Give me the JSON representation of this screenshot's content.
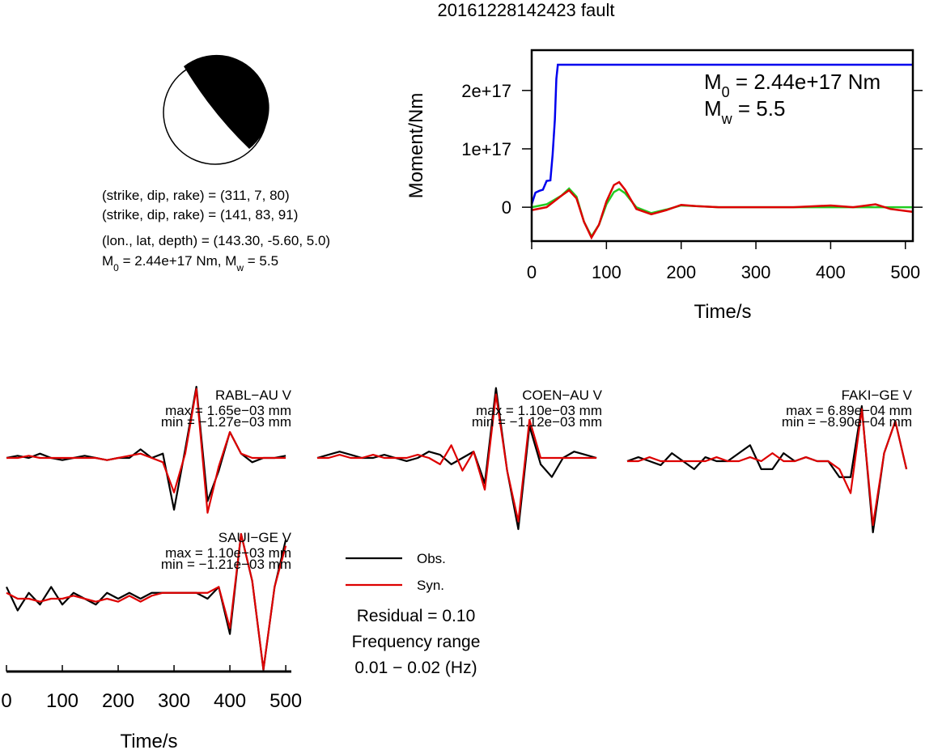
{
  "title": "20161228142423 fault",
  "focal_mechanism": {
    "lines": [
      "(strike, dip, rake) = (311, 7, 80)",
      "(strike, dip, rake) = (141, 83, 91)",
      "(lon., lat, depth) = (143.30, -5.60, 5.0)"
    ],
    "moment_line": [
      "M",
      "0",
      " = 2.44e+17 Nm, M",
      "w",
      " = 5.5"
    ]
  },
  "chart_data": [
    {
      "type": "line",
      "ylabel": "Moment/Nm",
      "xlabel": "Time/s",
      "annotations": [
        [
          "M",
          "0",
          " = 2.44e+17 Nm"
        ],
        [
          "M",
          "w",
          " = 5.5"
        ]
      ],
      "xlim": [
        0,
        510
      ],
      "xticks": [
        0,
        100,
        200,
        300,
        400,
        500
      ],
      "ylim": [
        -5.8e+16,
        2.69e+17
      ],
      "yticks": [
        0,
        {
          "value": 1e+17,
          "label": "1e+17"
        },
        {
          "value": 2e+17,
          "label": "2e+17"
        }
      ],
      "series": [
        {
          "color": "#0000ee",
          "x": [
            0,
            5,
            10,
            15,
            20,
            25,
            28,
            31,
            33,
            35,
            40,
            510
          ],
          "values": [
            5000000000000000.0,
            2.5e+16,
            2.8e+16,
            3e+16,
            4.5e+16,
            4.6e+16,
            9e+16,
            1.5e+17,
            2.2e+17,
            2.44e+17,
            2.44e+17,
            2.44e+17
          ]
        },
        {
          "color": "#22cc22",
          "x": [
            0,
            20,
            40,
            50,
            60,
            70,
            80,
            90,
            100,
            110,
            117,
            125,
            140,
            160,
            180,
            200,
            220,
            250,
            300,
            350,
            400,
            430,
            460,
            480,
            510
          ],
          "values": [
            0,
            5000000000000000.0,
            2e+16,
            3.2e+16,
            1.8e+16,
            -2.5e+16,
            -5e+16,
            -3e+16,
            5000000000000000.0,
            2.6e+16,
            3.1e+16,
            2.4e+16,
            0,
            -1e+16,
            -4000000000000000.0,
            3000000000000000.0,
            2000000000000000.0,
            0,
            0,
            0,
            0,
            0,
            0,
            0,
            0
          ]
        },
        {
          "color": "#dd0000",
          "x": [
            0,
            20,
            40,
            50,
            60,
            70,
            80,
            90,
            100,
            110,
            117,
            125,
            140,
            160,
            180,
            200,
            220,
            250,
            300,
            350,
            400,
            430,
            460,
            480,
            510
          ],
          "values": [
            -5000000000000000.0,
            0,
            2e+16,
            2.9e+16,
            1.5e+16,
            -2.5e+16,
            -5.2e+16,
            -3e+16,
            1e+16,
            3.8e+16,
            4.3e+16,
            3e+16,
            -3000000000000000.0,
            -1.2e+16,
            -5000000000000000.0,
            4000000000000000.0,
            2000000000000000.0,
            0,
            0,
            0,
            3000000000000000.0,
            0,
            5000000000000000.0,
            -3000000000000000.0,
            -8000000000000000.0
          ]
        }
      ]
    },
    {
      "type": "waveform",
      "xlabel": "Time/s",
      "xlim": [
        0,
        510
      ],
      "xticks": [
        0,
        100,
        200,
        300,
        400,
        500
      ],
      "x": [
        0,
        20,
        40,
        60,
        80,
        100,
        120,
        140,
        160,
        180,
        200,
        220,
        240,
        260,
        280,
        300,
        320,
        340,
        360,
        380,
        400,
        420,
        440,
        460,
        480,
        500
      ],
      "legend": [
        {
          "name": "Obs.",
          "color": "#000000"
        },
        {
          "name": "Syn.",
          "color": "#dd0000"
        }
      ],
      "notes": [
        "Residual = 0.10",
        "Frequency range",
        "0.01 − 0.02 (Hz)"
      ],
      "panels": [
        {
          "station": "RABL−AU V",
          "max_label": "max = 1.65e−03 mm",
          "min_label": "min = −1.27e−03 mm",
          "obs": [
            0,
            5e-05,
            0,
            0.0001,
            0,
            -5e-05,
            0,
            5e-05,
            0,
            -5e-05,
            0,
            0,
            0.0002,
            0,
            0.0001,
            -0.0012,
            0.0002,
            0.00165,
            -0.001,
            -0.0003,
            0.0006,
            0.0001,
            -0.0001,
            0,
            0,
            5e-05
          ],
          "syn": [
            0,
            0,
            5e-05,
            0,
            0,
            0,
            0,
            0,
            0,
            -5e-05,
            0,
            5e-05,
            0.0001,
            0,
            -0.0001,
            -0.0008,
            0.0001,
            0.0016,
            -0.00127,
            -0.0002,
            0.0006,
            0.0001,
            0,
            0,
            0,
            0
          ]
        },
        {
          "station": "COEN−AU V",
          "max_label": "max = 1.10e−03 mm",
          "min_label": "min = −1.12e−03 mm",
          "obs": [
            0,
            5e-05,
            0.0001,
            5e-05,
            0,
            0,
            5e-05,
            0,
            -5e-05,
            0,
            0.0001,
            5e-05,
            -0.0001,
            0,
            0.0001,
            -0.0004,
            0.0011,
            -0.0002,
            -0.00112,
            0.0005,
            -0.0001,
            -0.0003,
            0,
            0.0001,
            5e-05,
            0
          ],
          "syn": [
            0,
            0,
            5e-05,
            0,
            0,
            5e-05,
            0,
            0,
            0,
            5e-05,
            0,
            -0.0001,
            0.0002,
            -0.0002,
            0.0001,
            -0.0005,
            0.001,
            -0.0002,
            -0.001,
            0.0006,
            0,
            0,
            0,
            0,
            0,
            0
          ]
        },
        {
          "station": "FAKI−GE V",
          "max_label": "max = 6.89e−04 mm",
          "min_label": "min = −8.90e−04 mm",
          "obs": [
            0,
            5e-05,
            0,
            -5e-05,
            0.0001,
            0,
            -0.0001,
            5e-05,
            0,
            0,
            0.0001,
            0.0002,
            -0.0001,
            -0.0001,
            0.0001,
            0,
            5e-05,
            0,
            0,
            -0.0002,
            -0.0002,
            0.000689,
            -0.00089,
            0.0001,
            0.0005,
            -0.0001
          ],
          "syn": [
            0,
            0,
            5e-05,
            0,
            0,
            0,
            0,
            0,
            5e-05,
            0,
            0,
            5e-05,
            0,
            0.0001,
            0,
            0,
            5e-05,
            0,
            0,
            -0.0001,
            -0.0004,
            0.00065,
            -0.0008,
            0.0001,
            0.0005,
            -0.0001
          ]
        },
        {
          "station": "SAUI−GE V",
          "max_label": "max = 1.10e−03 mm",
          "min_label": "min = −1.21e−03 mm",
          "obs": [
            0.0002,
            -0.0002,
            0.0001,
            -0.0001,
            0.0002,
            -0.0001,
            0.0001,
            0,
            -0.0001,
            0.0001,
            0,
            0.0001,
            0,
            0.0001,
            0.0001,
            0.0001,
            0.0001,
            0.0001,
            0,
            0.0002,
            -0.0006,
            0.0011,
            0.0003,
            -0.00121,
            0.0002,
            0.001
          ],
          "syn": [
            0.0001,
            0,
            0,
            -5e-05,
            0,
            0,
            5e-05,
            0,
            -5e-05,
            0,
            -5e-05,
            5e-05,
            -5e-05,
            5e-05,
            0.0001,
            0.0001,
            0.0001,
            0.0001,
            0.0001,
            0.0002,
            -0.0005,
            0.0011,
            0.0003,
            -0.0012,
            0.0002,
            0.0009
          ]
        }
      ]
    }
  ]
}
